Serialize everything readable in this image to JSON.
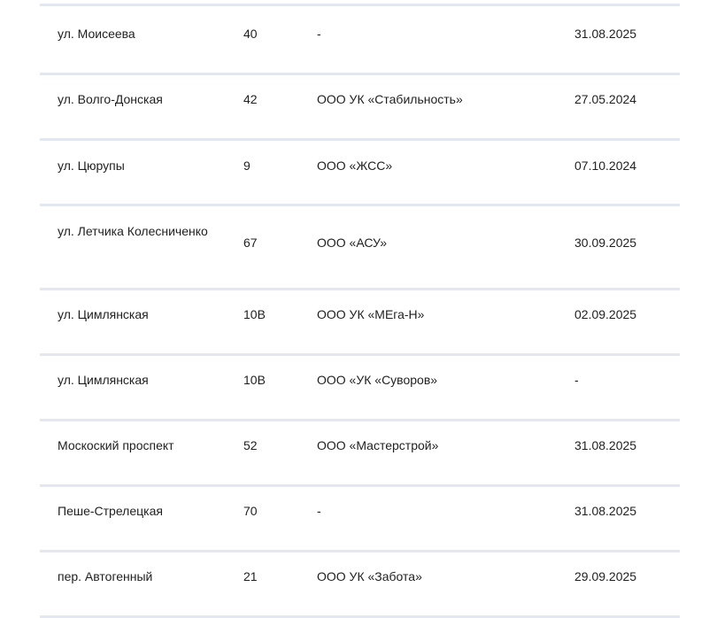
{
  "table": {
    "rows": [
      {
        "street": "ул. Моисеева",
        "number": "40",
        "org": "-",
        "date": "31.08.2025"
      },
      {
        "street": "ул. Волго-Донская",
        "number": "42",
        "org": "ООО УК «Стабильность»",
        "date": "27.05.2024"
      },
      {
        "street": "ул. Цюрупы",
        "number": "9",
        "org": "ООО «ЖСС»",
        "date": "07.10.2024"
      },
      {
        "street": "ул. Летчика Колесниченко",
        "number": "67",
        "org": "ООО «АСУ»",
        "date": "30.09.2025"
      },
      {
        "street": "ул. Цимлянская",
        "number": "10В",
        "org": "ООО УК «МЕга-Н»",
        "date": "02.09.2025"
      },
      {
        "street": "ул. Цимлянская",
        "number": "10В",
        "org": "ООО «УК «Суворов»",
        "date": "-"
      },
      {
        "street": "Москоский проспект",
        "number": "52",
        "org": "ООО «Мастерстрой»",
        "date": "31.08.2025"
      },
      {
        "street": "Пеше-Стрелецкая",
        "number": "70",
        "org": "-",
        "date": "31.08.2025"
      },
      {
        "street": "пер. Автогенный",
        "number": "21",
        "org": "ООО УК «Забота»",
        "date": "29.09.2025"
      }
    ]
  }
}
